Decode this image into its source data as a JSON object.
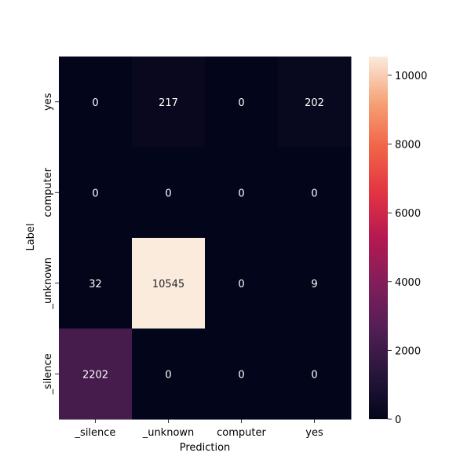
{
  "chart_data": {
    "type": "heatmap",
    "xlabel": "Prediction",
    "ylabel": "Label",
    "x_categories": [
      "_silence",
      "_unknown",
      "computer",
      "yes"
    ],
    "y_categories": [
      "yes",
      "computer",
      "_unknown",
      "_silence"
    ],
    "values": [
      [
        0,
        217,
        0,
        202
      ],
      [
        0,
        0,
        0,
        0
      ],
      [
        32,
        10545,
        0,
        9
      ],
      [
        2202,
        0,
        0,
        0
      ]
    ],
    "colorbar": {
      "min": 0,
      "max": 10545,
      "ticks": [
        0,
        2000,
        4000,
        6000,
        8000,
        10000
      ],
      "tick_labels": [
        "0",
        "2000",
        "4000",
        "6000",
        "8000",
        "10000"
      ],
      "colormap": "rocket"
    }
  }
}
